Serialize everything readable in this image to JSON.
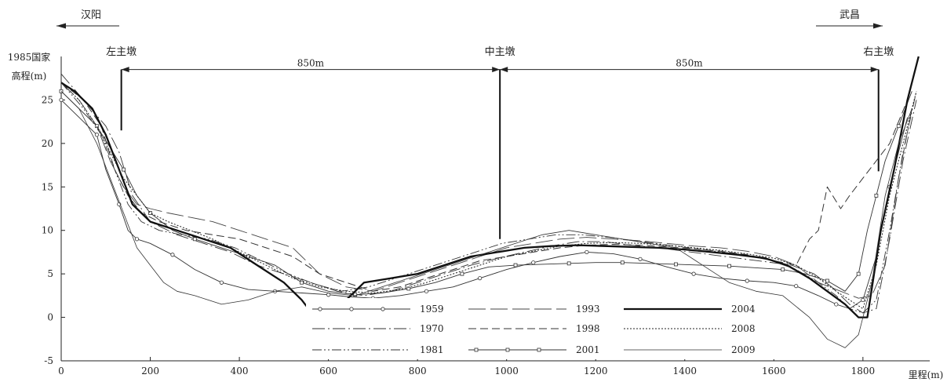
{
  "chart_data": {
    "type": "line",
    "xlabel": "里程(m)",
    "ylabel": "1985国家 高程(m)",
    "ylabel_lines": [
      "1985国家",
      "高程(m)"
    ],
    "xlim": [
      0,
      1950
    ],
    "ylim": [
      -5,
      30
    ],
    "x_ticks": [
      0,
      200,
      400,
      600,
      800,
      1000,
      1200,
      1400,
      1600,
      1800
    ],
    "y_ticks": [
      -5,
      0,
      5,
      10,
      15,
      20,
      25
    ],
    "grid": false,
    "legend_position": "bottom-center",
    "direction_labels": {
      "left": "汉阳",
      "right": "武昌"
    },
    "piers": [
      {
        "label": "左主墩",
        "x": 135,
        "top": 28.5,
        "bottom": 21.5
      },
      {
        "label": "中主墩",
        "x": 985,
        "top": 28.5,
        "bottom": 9.0
      },
      {
        "label": "右主墩",
        "x": 1835,
        "top": 28.5,
        "bottom": 16.8
      }
    ],
    "spans": [
      {
        "label": "850m",
        "x1": 135,
        "x2": 985,
        "y": 28.5
      },
      {
        "label": "850m",
        "x1": 985,
        "x2": 1835,
        "y": 28.5
      }
    ],
    "series": [
      {
        "name": "1959",
        "style": "circle",
        "x": [
          0,
          40,
          80,
          100,
          130,
          150,
          170,
          200,
          250,
          300,
          360,
          420,
          480,
          540,
          600,
          640,
          700,
          760,
          820,
          880,
          940,
          1000,
          1060,
          1120,
          1180,
          1240,
          1300,
          1360,
          1420,
          1480,
          1540,
          1600,
          1650,
          1700,
          1740,
          1770,
          1800,
          1830,
          1860,
          1900
        ],
        "y": [
          25,
          23,
          21,
          17,
          13,
          10,
          9,
          8.5,
          7.2,
          5.5,
          4,
          3.2,
          3,
          2.8,
          2.6,
          2.4,
          2.2,
          2.5,
          3,
          3.5,
          4.5,
          5.5,
          6.3,
          7,
          7.5,
          7.3,
          6.7,
          5.8,
          5,
          4.5,
          4.2,
          4.0,
          3.6,
          2.5,
          1.5,
          1,
          2,
          7,
          15,
          23
        ]
      },
      {
        "name": "1970",
        "style": "dashdot",
        "x": [
          0,
          50,
          100,
          130,
          160,
          200,
          260,
          320,
          380,
          440,
          500,
          560,
          620,
          680,
          740,
          800,
          860,
          920,
          980,
          1040,
          1100,
          1160,
          1220,
          1280,
          1340,
          1400,
          1460,
          1520,
          1580,
          1640,
          1690,
          1730,
          1770,
          1800,
          1830,
          1860,
          1890,
          1920
        ],
        "y": [
          28,
          25,
          22,
          19,
          14,
          11,
          9.5,
          8.5,
          7.5,
          6,
          5,
          4,
          3,
          2.5,
          3,
          4,
          5,
          6,
          6.8,
          7.5,
          8.2,
          8.7,
          8.7,
          8.3,
          8,
          7.6,
          7.2,
          6.8,
          6.4,
          6,
          5,
          3.5,
          1.5,
          0.5,
          1,
          9,
          18,
          25
        ]
      },
      {
        "name": "1981",
        "style": "dashdotdot",
        "x": [
          0,
          50,
          90,
          120,
          150,
          180,
          220,
          270,
          330,
          390,
          450,
          510,
          570,
          630,
          690,
          750,
          810,
          870,
          930,
          990,
          1050,
          1110,
          1170,
          1230,
          1290,
          1350,
          1410,
          1470,
          1530,
          1590,
          1650,
          1700,
          1740,
          1770,
          1800,
          1830,
          1860,
          1890,
          1920
        ],
        "y": [
          27,
          24,
          21,
          17,
          13,
          11,
          10,
          9.5,
          9,
          8,
          6.5,
          5,
          3.8,
          3,
          3.5,
          4.5,
          5.5,
          6.5,
          7.5,
          8.5,
          9,
          9.5,
          9.5,
          9.2,
          8.8,
          8.4,
          8,
          7.6,
          7.2,
          6.6,
          5.5,
          4,
          2.5,
          1,
          0.5,
          2,
          10,
          19,
          26
        ]
      },
      {
        "name": "1993",
        "style": "longdash",
        "x": [
          0,
          40,
          80,
          110,
          140,
          170,
          200,
          240,
          290,
          340,
          400,
          460,
          520,
          580,
          640,
          700,
          760,
          820,
          880,
          940,
          1000,
          1060,
          1120,
          1180,
          1240,
          1300,
          1360,
          1420,
          1480,
          1540,
          1600,
          1650,
          1700,
          1750,
          1790,
          1820,
          1850,
          1880,
          1910
        ],
        "y": [
          27,
          25,
          22,
          18,
          15,
          13,
          12.5,
          12,
          11.5,
          11,
          10,
          9,
          8,
          5,
          3.5,
          3,
          4,
          5,
          6,
          7,
          8,
          8.5,
          9,
          9.2,
          9,
          8.8,
          8.5,
          8.2,
          8,
          7.6,
          7,
          6,
          4,
          3,
          2.2,
          2.5,
          6,
          16,
          24
        ]
      },
      {
        "name": "1998",
        "style": "dashed",
        "x": [
          0,
          50,
          90,
          120,
          150,
          180,
          220,
          280,
          340,
          400,
          460,
          520,
          580,
          640,
          700,
          760,
          820,
          880,
          940,
          1000,
          1060,
          1120,
          1180,
          1240,
          1300,
          1360,
          1420,
          1480,
          1540,
          1600,
          1650,
          1680,
          1700,
          1720,
          1750,
          1770,
          1800,
          1830,
          1860,
          1900
        ],
        "y": [
          27,
          25,
          22,
          17,
          14,
          12,
          11,
          10,
          9.5,
          9,
          8,
          7,
          5,
          4,
          3,
          3.5,
          4.5,
          5.5,
          6.5,
          7,
          7.5,
          8,
          8.3,
          8.4,
          8.3,
          8.1,
          7.9,
          7.6,
          7.2,
          6.5,
          6,
          9,
          10,
          15,
          12.5,
          14,
          16,
          18,
          20,
          25
        ]
      },
      {
        "name": "2001",
        "style": "square",
        "x": [
          0,
          40,
          80,
          110,
          140,
          170,
          200,
          250,
          300,
          360,
          420,
          480,
          540,
          600,
          660,
          720,
          780,
          840,
          900,
          960,
          1020,
          1080,
          1140,
          1200,
          1260,
          1320,
          1380,
          1440,
          1500,
          1560,
          1620,
          1670,
          1720,
          1760,
          1790,
          1810,
          1830,
          1850,
          1880,
          1910
        ],
        "y": [
          26,
          24,
          22,
          19.5,
          17,
          14,
          12,
          10,
          9,
          8,
          7,
          6,
          4,
          3,
          2.6,
          2.8,
          3.3,
          4,
          5,
          5.8,
          6,
          6.1,
          6.2,
          6.3,
          6.3,
          6.2,
          6.1,
          6,
          5.9,
          5.7,
          5.5,
          5,
          4.2,
          3,
          5,
          10,
          14,
          18,
          22,
          26
        ]
      },
      {
        "name": "2004",
        "style": "thick",
        "x": [
          0,
          30,
          70,
          100,
          130,
          160,
          200,
          260,
          320,
          380,
          440,
          500,
          540,
          570,
          600,
          640,
          680,
          740,
          800,
          860,
          920,
          980,
          1040,
          1100,
          1160,
          1220,
          1280,
          1340,
          1400,
          1460,
          1520,
          1580,
          1630,
          1680,
          1720,
          1760,
          1790,
          1810,
          1840,
          1870,
          1900,
          1925
        ],
        "y": [
          27,
          26,
          24,
          21,
          17,
          13,
          11,
          10,
          9,
          8,
          6,
          4,
          2,
          0,
          0.5,
          2,
          4,
          4.5,
          5,
          6,
          7,
          7.5,
          8,
          8.2,
          8.3,
          8.2,
          8.1,
          8,
          7.8,
          7.5,
          7.2,
          6.8,
          6,
          4.5,
          3,
          1.5,
          0,
          0,
          10,
          17,
          25,
          30
        ]
      },
      {
        "name": "2008",
        "style": "dotted",
        "x": [
          0,
          40,
          80,
          110,
          140,
          170,
          200,
          240,
          290,
          340,
          400,
          460,
          520,
          580,
          640,
          700,
          760,
          820,
          880,
          940,
          1000,
          1060,
          1120,
          1180,
          1240,
          1300,
          1360,
          1420,
          1480,
          1540,
          1600,
          1650,
          1700,
          1740,
          1770,
          1800,
          1830,
          1860,
          1890,
          1920
        ],
        "y": [
          27,
          25,
          22,
          19,
          16,
          14,
          12,
          11,
          10,
          9,
          7.5,
          6,
          4.5,
          3.5,
          3,
          2.8,
          3.2,
          4,
          5,
          6,
          7,
          7.6,
          8.2,
          8.5,
          8.6,
          8.5,
          8.3,
          8,
          7.7,
          7.3,
          6.8,
          6,
          4.5,
          3,
          2,
          1,
          6,
          14,
          20,
          26
        ]
      },
      {
        "name": "2009",
        "style": "thin",
        "x": [
          0,
          40,
          80,
          110,
          140,
          170,
          200,
          230,
          260,
          300,
          360,
          420,
          480,
          540,
          600,
          660,
          720,
          780,
          840,
          900,
          960,
          1020,
          1080,
          1140,
          1200,
          1260,
          1320,
          1380,
          1440,
          1500,
          1560,
          1620,
          1680,
          1720,
          1760,
          1790,
          1820,
          1850,
          1880,
          1910
        ],
        "y": [
          26,
          24,
          20,
          16,
          12,
          8,
          6,
          4,
          3,
          2.5,
          1.5,
          2,
          3,
          3.5,
          2.8,
          2.5,
          3.5,
          4.5,
          5.5,
          6.5,
          7.5,
          8.5,
          9.5,
          10,
          9.5,
          9,
          8.5,
          8,
          6,
          4,
          3,
          2.5,
          0,
          -2.5,
          -3.5,
          -2,
          4,
          14,
          20,
          24
        ]
      }
    ]
  }
}
